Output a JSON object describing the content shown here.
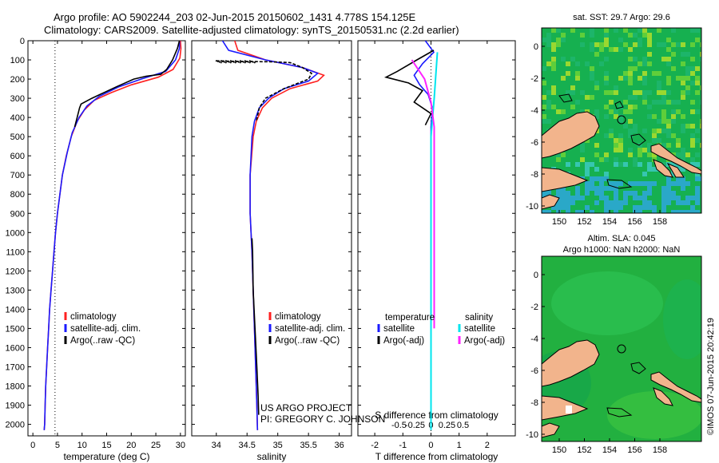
{
  "header": {
    "title_line1": "Argo profile: AO 5902244_203 02-Jun-2015 20150602_1431 4.778S 154.125E",
    "title_line2": "Climatology: CARS2009. Satellite-adjusted climatology: synTS_20150531.nc (2.2d earlier)"
  },
  "credits": {
    "project": "US ARGO PROJECT",
    "pi": "PI: GREGORY C. JOHNSON",
    "stamp": "©IMOS 07-Jun-2015 20:42:19"
  },
  "colors": {
    "climatology": "#ff2020",
    "satellite": "#1a1aff",
    "argo": "#000000",
    "salinity_satellite": "#00e5ee",
    "salinity_argo": "#ff22ff",
    "land": "#f2b48c"
  },
  "chart_data": [
    {
      "id": "temperature",
      "type": "line",
      "xlabel": "temperature (deg C)",
      "ylabel": "",
      "xlim": [
        -1,
        31
      ],
      "ylim": [
        2060,
        0
      ],
      "xticks": [
        0,
        5,
        10,
        15,
        20,
        25,
        30
      ],
      "yticks": [
        0,
        100,
        200,
        300,
        400,
        500,
        600,
        700,
        800,
        900,
        1000,
        1100,
        1200,
        1300,
        1400,
        1500,
        1600,
        1700,
        1800,
        1900,
        2000
      ],
      "reference_line_x": 4.5,
      "legend": [
        "climatology",
        "satellite-adj. clim.",
        "Argo(..raw -QC)"
      ],
      "legend_position": "lower-middle",
      "series": [
        {
          "name": "climatology",
          "color": "#ff2020",
          "points": [
            [
              30.0,
              0
            ],
            [
              30.1,
              40
            ],
            [
              29.9,
              90
            ],
            [
              28.5,
              150
            ],
            [
              25.5,
              190
            ],
            [
              20,
              230
            ],
            [
              16,
              270
            ],
            [
              12.5,
              310
            ],
            [
              10.5,
              360
            ],
            [
              9.0,
              420
            ],
            [
              7.8,
              500
            ],
            [
              6.8,
              600
            ],
            [
              6.0,
              700
            ],
            [
              5.5,
              800
            ],
            [
              5.0,
              900
            ],
            [
              4.6,
              1000
            ],
            [
              4.3,
              1100
            ],
            [
              4.0,
              1200
            ],
            [
              3.7,
              1300
            ],
            [
              3.4,
              1400
            ],
            [
              3.2,
              1500
            ],
            [
              3.0,
              1600
            ],
            [
              2.8,
              1700
            ],
            [
              2.6,
              1800
            ],
            [
              2.5,
              1900
            ],
            [
              2.4,
              2000
            ],
            [
              2.3,
              2030
            ]
          ]
        },
        {
          "name": "satellite-adj. clim.",
          "color": "#1a1aff",
          "points": [
            [
              29.8,
              0
            ],
            [
              29.8,
              40
            ],
            [
              29.0,
              100
            ],
            [
              27.0,
              160
            ],
            [
              22.0,
              200
            ],
            [
              17.5,
              240
            ],
            [
              13.5,
              290
            ],
            [
              11.0,
              340
            ],
            [
              9.4,
              400
            ],
            [
              8.0,
              480
            ],
            [
              7.0,
              580
            ],
            [
              6.0,
              700
            ],
            [
              5.5,
              800
            ],
            [
              5.0,
              900
            ],
            [
              4.6,
              1000
            ],
            [
              4.3,
              1100
            ],
            [
              4.0,
              1200
            ],
            [
              3.7,
              1300
            ],
            [
              3.4,
              1400
            ],
            [
              3.2,
              1500
            ],
            [
              3.0,
              1600
            ],
            [
              2.8,
              1700
            ],
            [
              2.6,
              1800
            ],
            [
              2.5,
              1900
            ],
            [
              2.4,
              2000
            ],
            [
              2.3,
              2030
            ]
          ]
        },
        {
          "name": "Argo(..raw -QC)",
          "color": "#000000",
          "points": [
            [
              29.8,
              0
            ],
            [
              29.4,
              40
            ],
            [
              28.4,
              100
            ],
            [
              27.2,
              150
            ],
            [
              26.0,
              175
            ],
            [
              23.0,
              185
            ],
            [
              20.5,
              200
            ],
            [
              17.0,
              240
            ],
            [
              12.0,
              300
            ],
            [
              9.8,
              330
            ],
            [
              9.5,
              350
            ],
            [
              9.0,
              400
            ],
            [
              8.5,
              450
            ]
          ]
        }
      ]
    },
    {
      "id": "salinity",
      "type": "line",
      "xlabel": "salinity",
      "xlim": [
        33.6,
        36.2
      ],
      "ylim": [
        2060,
        0
      ],
      "xticks": [
        34,
        34.5,
        35,
        35.5,
        36
      ],
      "xtick_labels": [
        "34",
        "34.5",
        "35",
        "35.5",
        "36"
      ],
      "legend": [
        "climatology",
        "satellite-adj. clim.",
        "Argo(..raw -QC)"
      ],
      "legend_position": "lower-middle",
      "series": [
        {
          "name": "climatology",
          "color": "#ff2020",
          "points": [
            [
              34.3,
              0
            ],
            [
              34.35,
              50
            ],
            [
              34.8,
              100
            ],
            [
              35.4,
              140
            ],
            [
              35.75,
              180
            ],
            [
              35.65,
              210
            ],
            [
              35.2,
              250
            ],
            [
              34.9,
              300
            ],
            [
              34.75,
              350
            ],
            [
              34.65,
              420
            ],
            [
              34.6,
              500
            ],
            [
              34.55,
              700
            ],
            [
              34.55,
              900
            ],
            [
              34.58,
              1100
            ],
            [
              34.6,
              1300
            ],
            [
              34.62,
              1500
            ],
            [
              34.64,
              1700
            ],
            [
              34.66,
              1900
            ],
            [
              34.67,
              2030
            ]
          ]
        },
        {
          "name": "satellite-adj. clim.",
          "color": "#1a1aff",
          "points": [
            [
              34.1,
              0
            ],
            [
              34.2,
              50
            ],
            [
              34.8,
              100
            ],
            [
              35.4,
              140
            ],
            [
              35.65,
              170
            ],
            [
              35.5,
              210
            ],
            [
              35.1,
              250
            ],
            [
              34.85,
              300
            ],
            [
              34.7,
              350
            ],
            [
              34.62,
              420
            ],
            [
              34.58,
              500
            ],
            [
              34.55,
              700
            ],
            [
              34.55,
              900
            ],
            [
              34.58,
              1100
            ],
            [
              34.6,
              1300
            ],
            [
              34.62,
              1500
            ],
            [
              34.64,
              1700
            ],
            [
              34.66,
              1900
            ],
            [
              34.67,
              2030
            ]
          ]
        },
        {
          "name": "Argo(..raw -QC)",
          "color": "#000000",
          "dash": true,
          "points": [
            [
              34.0,
              105
            ],
            [
              34.4,
              108
            ],
            [
              34.9,
              110
            ],
            [
              35.2,
              114
            ],
            [
              35.4,
              140
            ],
            [
              35.55,
              170
            ],
            [
              35.5,
              200
            ],
            [
              35.1,
              250
            ],
            [
              34.8,
              300
            ],
            [
              34.7,
              350
            ],
            [
              34.65,
              420
            ]
          ]
        },
        {
          "name": "Argo(..raw -QC) deep",
          "color": "#000000",
          "points": [
            [
              34.58,
              1030
            ],
            [
              34.59,
              1100
            ],
            [
              34.6,
              1300
            ],
            [
              34.63,
              1500
            ],
            [
              34.66,
              1700
            ],
            [
              34.68,
              1850
            ],
            [
              34.69,
              1950
            ]
          ]
        }
      ]
    },
    {
      "id": "difference",
      "type": "line",
      "xlabel": "T difference from climatology",
      "xlabel_top": "S difference from climatology",
      "xlim": [
        -2.6,
        3.0
      ],
      "ylim": [
        2060,
        0
      ],
      "xticks": [
        -2,
        -1,
        0,
        1,
        2
      ],
      "xtick_labels": [
        "-2",
        "-1",
        "0",
        "1",
        "2"
      ],
      "sticks": [
        -0.5,
        -0.25,
        0,
        0.25,
        0.5
      ],
      "stick_labels": [
        "-0.5",
        "-0.25",
        "0",
        "0.25",
        "0.5"
      ],
      "legend_left_title": "temperature",
      "legend_right_title": "salinity",
      "legend": [
        "satellite",
        "Argo(-adj)",
        "satellite",
        "Argo(-adj)"
      ],
      "series": [
        {
          "name": "T satellite",
          "color": "#1a1aff",
          "points": [
            [
              -0.2,
              0
            ],
            [
              0.1,
              60
            ],
            [
              -0.3,
              120
            ],
            [
              -0.6,
              180
            ],
            [
              -0.4,
              230
            ],
            [
              -0.1,
              280
            ],
            [
              0.05,
              350
            ],
            [
              0.0,
              450
            ],
            [
              0.0,
              550
            ]
          ]
        },
        {
          "name": "T Argo(-adj)",
          "color": "#000000",
          "points": [
            [
              0.1,
              50
            ],
            [
              -0.5,
              100
            ],
            [
              -1.2,
              160
            ],
            [
              -1.6,
              190
            ],
            [
              -0.8,
              220
            ],
            [
              -0.3,
              260
            ],
            [
              -0.6,
              320
            ],
            [
              0.0,
              380
            ],
            [
              -0.2,
              440
            ]
          ]
        },
        {
          "name": "S satellite",
          "color": "#00e5ee",
          "points": [
            [
              0.1,
              60
            ],
            [
              0.05,
              300
            ],
            [
              0.0,
              500
            ],
            [
              0.0,
              700
            ],
            [
              0.0,
              1000
            ],
            [
              0.0,
              1500
            ],
            [
              0.0,
              2030
            ]
          ]
        },
        {
          "name": "S Argo(-adj)",
          "color": "#ff22ff",
          "points": [
            [
              -0.3,
              100
            ],
            [
              -0.1,
              200
            ],
            [
              0.0,
              320
            ],
            [
              0.05,
              450
            ],
            [
              0.05,
              1100
            ],
            [
              0.05,
              1300
            ],
            [
              0.05,
              1500
            ]
          ]
        }
      ]
    }
  ],
  "maps": [
    {
      "id": "sst-map",
      "title": "sat. SST: 29.7  Argo: 29.6",
      "xticks": [
        "150",
        "152",
        "154",
        "156",
        "158"
      ],
      "yticks": [
        "0",
        "-2",
        "-4",
        "-6",
        "-8",
        "-10"
      ]
    },
    {
      "id": "sla-map",
      "title_line1": "Altim. SLA: 0.045",
      "title_line2": "Argo h1000: NaN h2000: NaN",
      "xticks": [
        "150",
        "152",
        "154",
        "156",
        "158"
      ],
      "yticks": [
        "0",
        "-2",
        "-4",
        "-6",
        "-8",
        "-10"
      ]
    }
  ]
}
